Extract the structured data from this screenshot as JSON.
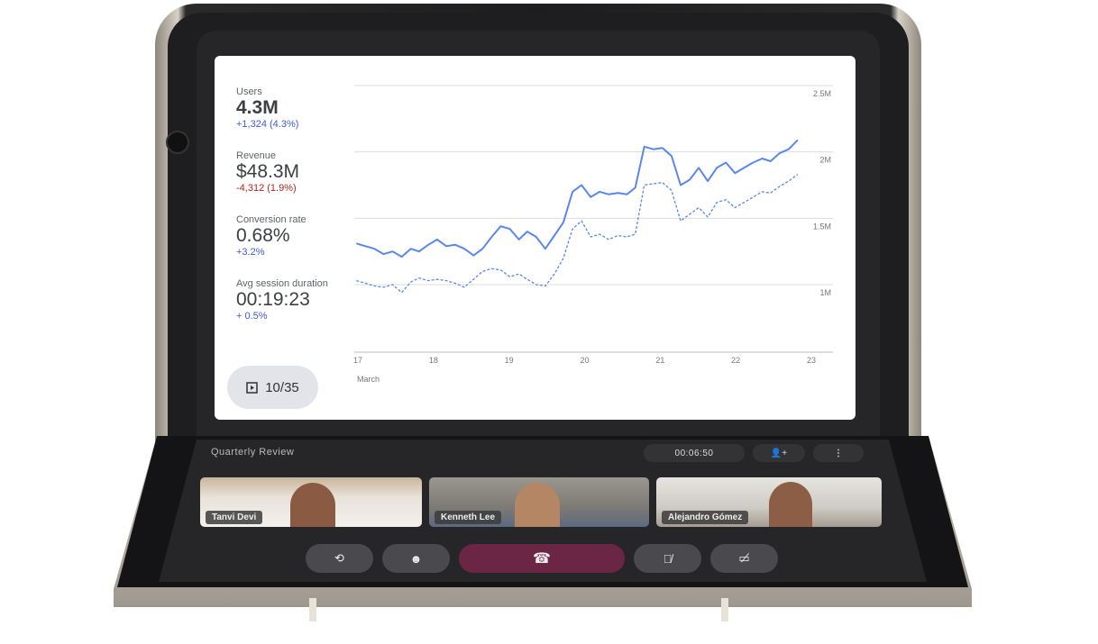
{
  "metrics": [
    {
      "label": "Users",
      "value": "4.3M",
      "delta": "+1,324 (4.3%)",
      "trend": "up"
    },
    {
      "label": "Revenue",
      "value": "$48.3M",
      "delta": "-4,312 (1.9%)",
      "trend": "down"
    },
    {
      "label": "Conversion rate",
      "value": "0.68%",
      "delta": "+3.2%",
      "trend": "up"
    },
    {
      "label": "Avg session duration",
      "value": "00:19:23",
      "delta": "+ 0.5%",
      "trend": "up"
    }
  ],
  "slide_counter": "10/35",
  "chart_data": {
    "type": "line",
    "x_ticks": [
      "17",
      "18",
      "19",
      "20",
      "21",
      "22",
      "23"
    ],
    "xlabel": "March",
    "y_ticks": [
      "1M",
      "1.5M",
      "2M",
      "2.5M"
    ],
    "ylim": [
      1,
      2.5
    ],
    "y_axis_side": "right",
    "grid": true,
    "x": [
      16.98,
      17.1,
      17.22,
      17.34,
      17.46,
      17.58,
      17.7,
      17.81,
      17.93,
      18.05,
      18.17,
      18.29,
      18.41,
      18.53,
      18.65,
      18.77,
      18.89,
      19.01,
      19.13,
      19.24,
      19.36,
      19.48,
      19.6,
      19.72,
      19.84,
      19.96,
      20.08,
      20.2,
      20.32,
      20.44,
      20.56,
      20.67,
      20.79,
      20.91,
      21.03,
      21.15,
      21.27,
      21.39,
      21.51,
      21.63,
      21.75,
      21.87,
      21.99,
      22.11,
      22.23,
      22.35,
      22.46,
      22.58,
      22.7,
      22.82
    ],
    "series": [
      {
        "style": "solid",
        "color": "#5b86f0",
        "values": [
          1.31,
          1.29,
          1.27,
          1.23,
          1.25,
          1.21,
          1.27,
          1.25,
          1.3,
          1.34,
          1.29,
          1.3,
          1.27,
          1.22,
          1.27,
          1.36,
          1.44,
          1.42,
          1.34,
          1.4,
          1.36,
          1.27,
          1.37,
          1.47,
          1.7,
          1.75,
          1.66,
          1.7,
          1.68,
          1.69,
          1.68,
          1.73,
          2.04,
          2.02,
          2.03,
          1.97,
          1.75,
          1.79,
          1.88,
          1.78,
          1.88,
          1.92,
          1.84,
          1.88,
          1.92,
          1.95,
          1.93,
          1.99,
          2.02,
          2.09
        ]
      },
      {
        "style": "dashed",
        "color": "#5b86f0",
        "values": [
          1.03,
          1.01,
          0.99,
          0.98,
          1.0,
          0.94,
          1.02,
          1.05,
          1.03,
          1.04,
          1.03,
          1.01,
          0.98,
          1.04,
          1.1,
          1.12,
          1.11,
          1.06,
          1.08,
          1.04,
          1.0,
          0.99,
          1.08,
          1.2,
          1.42,
          1.48,
          1.36,
          1.38,
          1.34,
          1.37,
          1.36,
          1.38,
          1.75,
          1.76,
          1.77,
          1.71,
          1.48,
          1.53,
          1.58,
          1.51,
          1.62,
          1.64,
          1.58,
          1.62,
          1.66,
          1.7,
          1.69,
          1.74,
          1.78,
          1.83
        ]
      }
    ]
  },
  "call": {
    "title": "Quarterly Review",
    "timer": "00:06:50",
    "participants": [
      "Tanvi Devi",
      "Kenneth Lee",
      "Alejandro Gómez"
    ],
    "end_call_color": "#6b2545"
  }
}
